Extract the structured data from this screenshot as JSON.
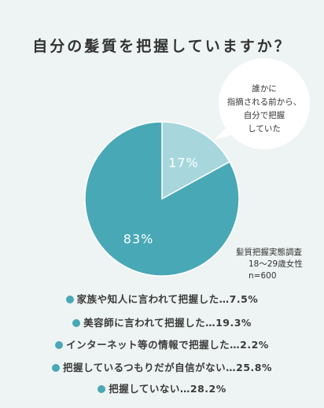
{
  "title": "自分の髪質を把握していますか？",
  "colors": {
    "background": "#eef4f3",
    "major_slice": "#49a8b6",
    "minor_slice": "#a7d7dc",
    "accent_dot": "#49a8b6"
  },
  "callout": {
    "lines": [
      "誰かに",
      "指摘される前から、",
      "自分で把握",
      "していた"
    ]
  },
  "survey_note": {
    "lines": [
      "髪質把握実態調査",
      "18〜29歳女性",
      "n=600"
    ]
  },
  "chart_data": {
    "type": "pie",
    "title": "自分の髪質を把握していますか？",
    "slices": [
      {
        "value": 17,
        "label": "17%",
        "color": "#a7d7dc"
      },
      {
        "value": 83,
        "label": "83%",
        "color": "#49a8b6"
      }
    ],
    "start_angle_deg": 0,
    "direction": "clockwise"
  },
  "breakdown": [
    "家族や知人に言われて把握した…7.5%",
    "美容師に言われて把握した…19.3%",
    "インターネット等の情報で把握した…2.2%",
    "把握しているつもりだが自信がない…25.8%",
    "把握していない…28.2%"
  ]
}
